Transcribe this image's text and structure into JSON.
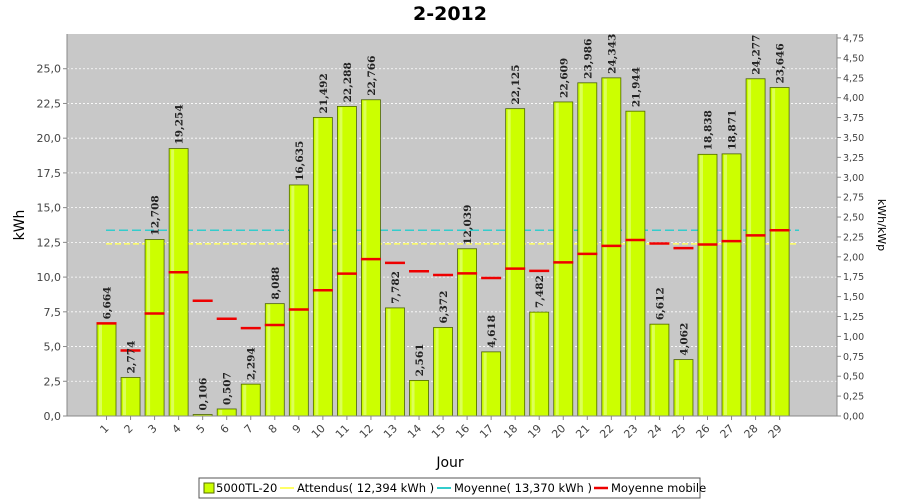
{
  "chart_data": {
    "type": "bar",
    "title": "2-2012",
    "xlabel": "Jour",
    "ylabel": "kWh",
    "y2label": "kWh/kWp",
    "ylim": [
      0,
      27.5
    ],
    "y2lim": [
      0,
      4.8
    ],
    "yticks": [
      "0,0",
      "2,5",
      "5,0",
      "7,5",
      "10,0",
      "12,5",
      "15,0",
      "17,5",
      "20,0",
      "22,5",
      "25,0"
    ],
    "y2ticks": [
      "0,00",
      "0,25",
      "0,50",
      "0,75",
      "1,00",
      "1,25",
      "1,50",
      "1,75",
      "2,00",
      "2,25",
      "2,50",
      "2,75",
      "3,00",
      "3,25",
      "3,50",
      "3,75",
      "4,00",
      "4,25",
      "4,50",
      "4,75"
    ],
    "categories": [
      "1",
      "2",
      "3",
      "4",
      "5",
      "6",
      "7",
      "8",
      "9",
      "10",
      "11",
      "12",
      "13",
      "14",
      "15",
      "16",
      "17",
      "18",
      "19",
      "20",
      "21",
      "22",
      "23",
      "24",
      "25",
      "26",
      "27",
      "28",
      "29"
    ],
    "grid": true,
    "legend_position": "bottom",
    "series": [
      {
        "name": "5000TL-20",
        "type": "bar",
        "color": "#ccff00",
        "values": [
          6.664,
          2.774,
          12.708,
          19.254,
          0.106,
          0.507,
          2.294,
          8.088,
          16.635,
          21.492,
          22.288,
          22.766,
          7.782,
          2.561,
          6.372,
          12.039,
          4.618,
          22.125,
          7.482,
          22.609,
          23.986,
          24.343,
          21.944,
          6.612,
          4.062,
          18.838,
          18.871,
          24.277,
          23.646
        ],
        "labels": [
          "6,664",
          "2,774",
          "12,708",
          "19,254",
          "0,106",
          "0,507",
          "2,294",
          "8,088",
          "16,635",
          "21,492",
          "22,288",
          "22,766",
          "7,782",
          "2,561",
          "6,372",
          "12,039",
          "4,618",
          "22,125",
          "7,482",
          "22,609",
          "23,986",
          "24,343",
          "21,944",
          "6,612",
          "4,062",
          "18,838",
          "18,871",
          "24,277",
          "23,646"
        ]
      },
      {
        "name": "Attendus( 12,394 kWh )",
        "type": "hline",
        "color": "#ffff66",
        "value": 12.394
      },
      {
        "name": "Moyenne( 13,370 kWh )",
        "type": "hline",
        "color": "#33cccc",
        "value": 13.37
      },
      {
        "name": "Moyenne mobile",
        "type": "marker",
        "color": "#ee0000",
        "values": [
          6.664,
          4.719,
          7.382,
          10.35,
          8.301,
          7.003,
          6.33,
          6.549,
          7.669,
          9.051,
          10.254,
          11.297,
          11.027,
          10.422,
          10.151,
          10.268,
          9.936,
          10.613,
          10.448,
          11.056,
          11.672,
          12.247,
          12.668,
          12.416,
          12.082,
          12.343,
          12.587,
          13.004,
          13.37
        ]
      }
    ]
  }
}
